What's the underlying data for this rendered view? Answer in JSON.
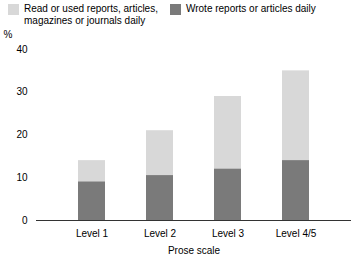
{
  "chart_data": {
    "type": "bar",
    "xlabel": "Prose scale",
    "ylabel": "%",
    "categories": [
      "Level 1",
      "Level 2",
      "Level 3",
      "Level 4/5"
    ],
    "series": [
      {
        "name": "Read or used reports, articles,\nmagazines or journals daily",
        "color": "#d8d8d8",
        "values": [
          14,
          21,
          29,
          35
        ]
      },
      {
        "name": "Wrote reports or articles daily",
        "color": "#7a7a7a",
        "values": [
          9,
          10.5,
          12,
          14
        ]
      }
    ],
    "ylim": [
      0,
      40
    ],
    "yticks": [
      0,
      10,
      20,
      30,
      40
    ],
    "legend": "upper left",
    "grid": false
  }
}
